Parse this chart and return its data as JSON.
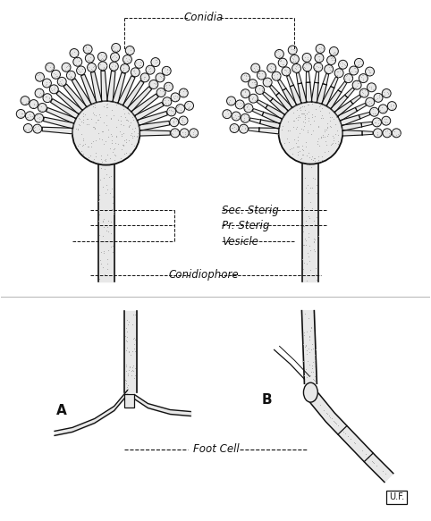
{
  "bg_color": "#ffffff",
  "line_color": "#111111",
  "stipple_color": "#aaaaaa",
  "fill_gray": "#e8e8e8",
  "fill_dark": "#cccccc",
  "labels": {
    "conidia": "Conidia",
    "sec_sterig": "Sec. Sterig",
    "pr_sterig": "Pr. Sterig",
    "vesicle": "Vesicle",
    "conidiophore": "Conidiophore",
    "foot_cell": "Foot Cell",
    "A": "A",
    "B": "B",
    "initials": "U.F."
  },
  "figsize": [
    4.82,
    5.83
  ],
  "dpi": 100
}
